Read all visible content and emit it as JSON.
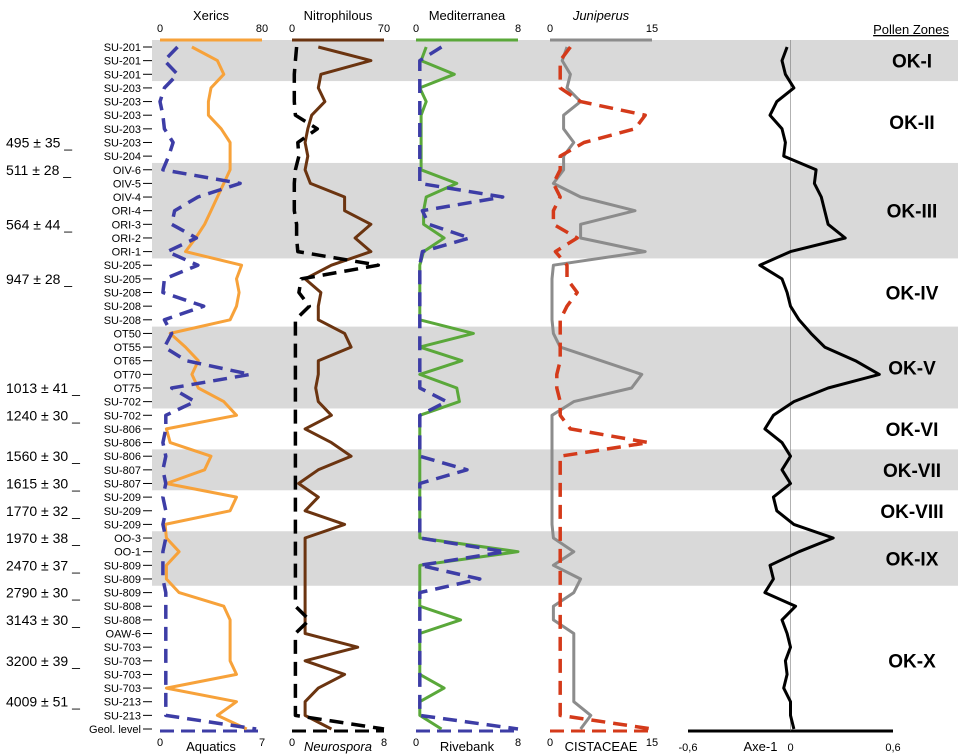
{
  "chart_data": {
    "type": "line",
    "title": "",
    "samples": [
      "SU-201",
      "SU-201",
      "SU-201",
      "SU-203",
      "SU-203",
      "SU-203",
      "SU-203",
      "SU-203",
      "SU-204",
      "OIV-6",
      "OIV-5",
      "OIV-4",
      "ORI-4",
      "ORI-3",
      "ORI-2",
      "ORI-1",
      "SU-205",
      "SU-205",
      "SU-208",
      "SU-208",
      "SU-208",
      "OT50",
      "OT55",
      "OT65",
      "OT70",
      "OT75",
      "SU-702",
      "SU-702",
      "SU-806",
      "SU-806",
      "SU-806",
      "SU-807",
      "SU-807",
      "SU-209",
      "SU-209",
      "SU-209",
      "OO-3",
      "OO-1",
      "SU-809",
      "SU-809",
      "SU-809",
      "SU-808",
      "SU-808",
      "OAW-6",
      "SU-703",
      "SU-703",
      "SU-703",
      "SU-703",
      "SU-213",
      "SU-213",
      "Geol. level"
    ],
    "dates": [
      {
        "label": "495 ± 35",
        "sample_index": 7
      },
      {
        "label": "511 ± 28",
        "sample_index": 9
      },
      {
        "label": "564 ± 44",
        "sample_index": 13
      },
      {
        "label": "947 ± 28",
        "sample_index": 17
      },
      {
        "label": "1013 ± 41",
        "sample_index": 25
      },
      {
        "label": "1240 ± 30",
        "sample_index": 27
      },
      {
        "label": "1560 ± 30",
        "sample_index": 30
      },
      {
        "label": "1615 ± 30",
        "sample_index": 32
      },
      {
        "label": "1770 ± 32",
        "sample_index": 34
      },
      {
        "label": "1970 ± 38",
        "sample_index": 36
      },
      {
        "label": "2470 ± 37",
        "sample_index": 38
      },
      {
        "label": "2790 ± 30",
        "sample_index": 40
      },
      {
        "label": "3143 ± 30",
        "sample_index": 42
      },
      {
        "label": "3200 ± 39",
        "sample_index": 45
      },
      {
        "label": "4009 ± 51",
        "sample_index": 48
      }
    ],
    "pollen_zones_title": "Pollen Zones",
    "zones": [
      {
        "label": "OK-I",
        "from": 0,
        "to": 3,
        "shaded": true
      },
      {
        "label": "OK-II",
        "from": 3,
        "to": 9,
        "shaded": false
      },
      {
        "label": "OK-III",
        "from": 9,
        "to": 16,
        "shaded": true
      },
      {
        "label": "OK-IV",
        "from": 16,
        "to": 21,
        "shaded": false
      },
      {
        "label": "OK-V",
        "from": 21,
        "to": 27,
        "shaded": true
      },
      {
        "label": "OK-VI",
        "from": 27,
        "to": 30,
        "shaded": false
      },
      {
        "label": "OK-VII",
        "from": 30,
        "to": 33,
        "shaded": true
      },
      {
        "label": "OK-VIII",
        "from": 33,
        "to": 36,
        "shaded": false
      },
      {
        "label": "OK-IX",
        "from": 36,
        "to": 40,
        "shaded": true
      },
      {
        "label": "OK-X",
        "from": 40,
        "to": 51,
        "shaded": false
      }
    ],
    "panels": [
      {
        "top_axis": {
          "label": "Xerics",
          "min": 0,
          "max": 80,
          "tick_min": "0",
          "tick_max": "80",
          "color": "#f7a23a"
        },
        "bottom_axis": {
          "label": "Aquatics",
          "min": 0,
          "max": 7,
          "tick_min": "0",
          "tick_max": "7",
          "color": "#3d3da6"
        },
        "series": [
          {
            "color": "#f7a23a",
            "dashed": false,
            "axis": "top",
            "values": [
              25,
              45,
              50,
              40,
              38,
              38,
              48,
              55,
              55,
              55,
              50,
              45,
              40,
              35,
              28,
              20,
              64,
              60,
              62,
              60,
              55,
              8,
              20,
              30,
              25,
              30,
              50,
              60,
              5,
              8,
              40,
              35,
              5,
              60,
              55,
              4,
              5,
              15,
              5,
              5,
              15,
              50,
              55,
              55,
              55,
              55,
              60,
              5,
              60,
              45,
              68
            ]
          },
          {
            "color": "#3d3da6",
            "dashed": true,
            "axis": "bottom",
            "values": [
              1.2,
              0.3,
              1.2,
              0.3,
              0,
              0.2,
              0.3,
              0.9,
              0.6,
              0.2,
              5.5,
              2.6,
              1.0,
              0.8,
              2.5,
              0.5,
              2.6,
              0.3,
              0.2,
              3.0,
              0.3,
              0.8,
              0.3,
              1.8,
              6.2,
              0.8,
              2.4,
              0.4,
              0.4,
              0.2,
              0.4,
              0.2,
              0.4,
              0.2,
              0.4,
              0.2,
              0.4,
              0.2,
              0.2,
              0.2,
              0.4,
              0.4,
              0.4,
              0.4,
              0.4,
              0.4,
              0.4,
              0.4,
              0.4,
              0.4,
              6.6
            ]
          }
        ]
      },
      {
        "top_axis": {
          "label": "Nitrophilous",
          "min": 0,
          "max": 70,
          "tick_min": "0",
          "tick_max": "70",
          "color": "#6b3410"
        },
        "bottom_axis": {
          "label": "Neurospora",
          "italic": true,
          "min": 0,
          "max": 8,
          "tick_min": "0",
          "tick_max": "8",
          "color": "#000000"
        },
        "series": [
          {
            "color": "#6b3410",
            "dashed": false,
            "axis": "top",
            "values": [
              20,
              60,
              22,
              20,
              25,
              15,
              12,
              10,
              12,
              10,
              14,
              40,
              40,
              60,
              48,
              60,
              30,
              10,
              22,
              20,
              20,
              40,
              45,
              20,
              20,
              18,
              20,
              30,
              10,
              30,
              45,
              20,
              5,
              20,
              10,
              40,
              10,
              10,
              10,
              10,
              10,
              10,
              10,
              10,
              50,
              10,
              40,
              20,
              10,
              10,
              30
            ]
          },
          {
            "color": "#000000",
            "dashed": true,
            "axis": "bottom",
            "values": [
              0.4,
              0.3,
              0.2,
              0.2,
              0.2,
              0.3,
              2.2,
              0.5,
              0.6,
              0.3,
              0.2,
              0.2,
              0.2,
              0.4,
              0.4,
              0.5,
              7.5,
              0.8,
              0.6,
              1.5,
              0.3,
              0.3,
              0.3,
              0.3,
              0.3,
              0.3,
              0.3,
              0.3,
              0.3,
              0.3,
              0.3,
              0.3,
              0.3,
              0.3,
              0.3,
              0.3,
              0.3,
              0.3,
              0.3,
              0.3,
              0.3,
              0.3,
              1.5,
              0.3,
              0.3,
              0.3,
              0.3,
              0.3,
              0.3,
              0.3,
              8
            ]
          }
        ]
      },
      {
        "top_axis": {
          "label": "Mediterranea",
          "min": 0,
          "max": 8,
          "tick_min": "0",
          "tick_max": "8",
          "color": "#5aa83a"
        },
        "bottom_axis": {
          "label": "Rivebank",
          "min": 0,
          "max": 8,
          "tick_min": "0",
          "tick_max": "8",
          "color": "#3d3da6"
        },
        "series": [
          {
            "color": "#5aa83a",
            "dashed": false,
            "axis": "top",
            "values": [
              0.8,
              0.4,
              3.0,
              0.3,
              0.8,
              0.4,
              0.4,
              0.4,
              0.4,
              0.4,
              3.2,
              0.8,
              0.6,
              0.6,
              2.2,
              0.6,
              0.3,
              0.3,
              0.3,
              0.3,
              0.3,
              4.5,
              0.3,
              3.6,
              0.3,
              3.2,
              3.4,
              0.3,
              0.3,
              0.3,
              0.3,
              0.3,
              0.3,
              0.3,
              0.3,
              0.3,
              0.3,
              8.0,
              0.3,
              0.3,
              0.3,
              0.3,
              3.5,
              0.3,
              0.3,
              0.3,
              0.3,
              2.2,
              0.3,
              0.3,
              2.0
            ]
          },
          {
            "color": "#3d3da6",
            "dashed": true,
            "axis": "bottom",
            "values": [
              2.0,
              0.3,
              0.3,
              0.3,
              0.3,
              0.3,
              0.3,
              0.3,
              0.3,
              0.3,
              0.3,
              6.8,
              0.5,
              1.0,
              4.2,
              0.5,
              0.3,
              0.3,
              0.3,
              0.3,
              0.3,
              0.3,
              0.3,
              0.3,
              0.3,
              0.3,
              2.4,
              0.3,
              0.3,
              0.3,
              0.3,
              4.0,
              0.3,
              0.3,
              0.3,
              0.3,
              0.3,
              7.0,
              0.3,
              5.0,
              0.3,
              0.3,
              0.3,
              0.3,
              0.3,
              0.3,
              0.3,
              0.3,
              0.3,
              0.3,
              8
            ]
          }
        ]
      },
      {
        "top_axis": {
          "label": "Juniperus",
          "italic": true,
          "min": 0,
          "max": 15,
          "tick_min": "0",
          "tick_max": "15",
          "color": "#8c8c8c"
        },
        "bottom_axis": {
          "label": "CISTACEAE",
          "min": 0,
          "max": 15,
          "tick_min": "0",
          "tick_max": "15",
          "color": "#d43a1a"
        },
        "series": [
          {
            "color": "#8c8c8c",
            "dashed": false,
            "axis": "top",
            "values": [
              2.5,
              1.8,
              3.0,
              2.5,
              4.5,
              2.0,
              2.0,
              3.5,
              2.0,
              2.0,
              0.5,
              4.5,
              12.5,
              4.5,
              4.5,
              14.0,
              0.5,
              0.3,
              0.3,
              0.3,
              0.3,
              0.5,
              1.5,
              7.5,
              13.5,
              12.0,
              3.5,
              0.3,
              0.3,
              0.3,
              0.3,
              0.3,
              0.3,
              0.3,
              0.3,
              0.3,
              0.5,
              3.5,
              0.5,
              4.5,
              3.5,
              0.5,
              0.5,
              3.5,
              3.5,
              3.5,
              3.5,
              3.5,
              3.5,
              6.0,
              4.5
            ]
          },
          {
            "color": "#d43a1a",
            "dashed": true,
            "axis": "bottom",
            "values": [
              3.0,
              1.5,
              1.5,
              1.5,
              4.5,
              14.0,
              12.5,
              5.0,
              1.5,
              1.5,
              0.5,
              1.5,
              0.5,
              0.5,
              4.0,
              0.8,
              2.5,
              2.5,
              4.0,
              2.5,
              1.5,
              1.5,
              1.5,
              1.5,
              1.0,
              1.0,
              1.5,
              1.5,
              3.0,
              14.5,
              1.5,
              1.5,
              1.5,
              1.5,
              1.5,
              1.5,
              1.5,
              1.5,
              1.5,
              1.5,
              1.5,
              1.5,
              1.5,
              1.5,
              1.5,
              1.5,
              1.5,
              1.5,
              1.5,
              1.5,
              15
            ]
          }
        ]
      },
      {
        "top_axis": {
          "label": "",
          "min": -0.6,
          "max": 0.6,
          "tick_min": "",
          "tick_max": "",
          "color": "#000000"
        },
        "bottom_axis": {
          "label": "Axe-1",
          "min": -0.6,
          "max": 0.6,
          "tick_min": "-0,6",
          "tick_mid": "0",
          "tick_max": "0,6",
          "color": "#000000"
        },
        "series": [
          {
            "color": "#000000",
            "dashed": false,
            "axis": "bottom",
            "values": [
              -0.02,
              -0.05,
              -0.03,
              0.02,
              -0.08,
              -0.12,
              -0.05,
              -0.03,
              -0.04,
              0.15,
              0.14,
              0.18,
              0.2,
              0.22,
              0.32,
              0.0,
              -0.18,
              -0.05,
              -0.02,
              0.0,
              0.05,
              0.12,
              0.2,
              0.38,
              0.52,
              0.22,
              0.02,
              -0.1,
              -0.15,
              -0.05,
              0.0,
              -0.05,
              0.0,
              -0.1,
              -0.08,
              0.02,
              0.25,
              0.05,
              -0.12,
              -0.1,
              -0.15,
              0.03,
              -0.05,
              -0.02,
              0.0,
              -0.03,
              -0.02,
              -0.04,
              0.0,
              0.0,
              0.02
            ]
          }
        ]
      }
    ]
  }
}
